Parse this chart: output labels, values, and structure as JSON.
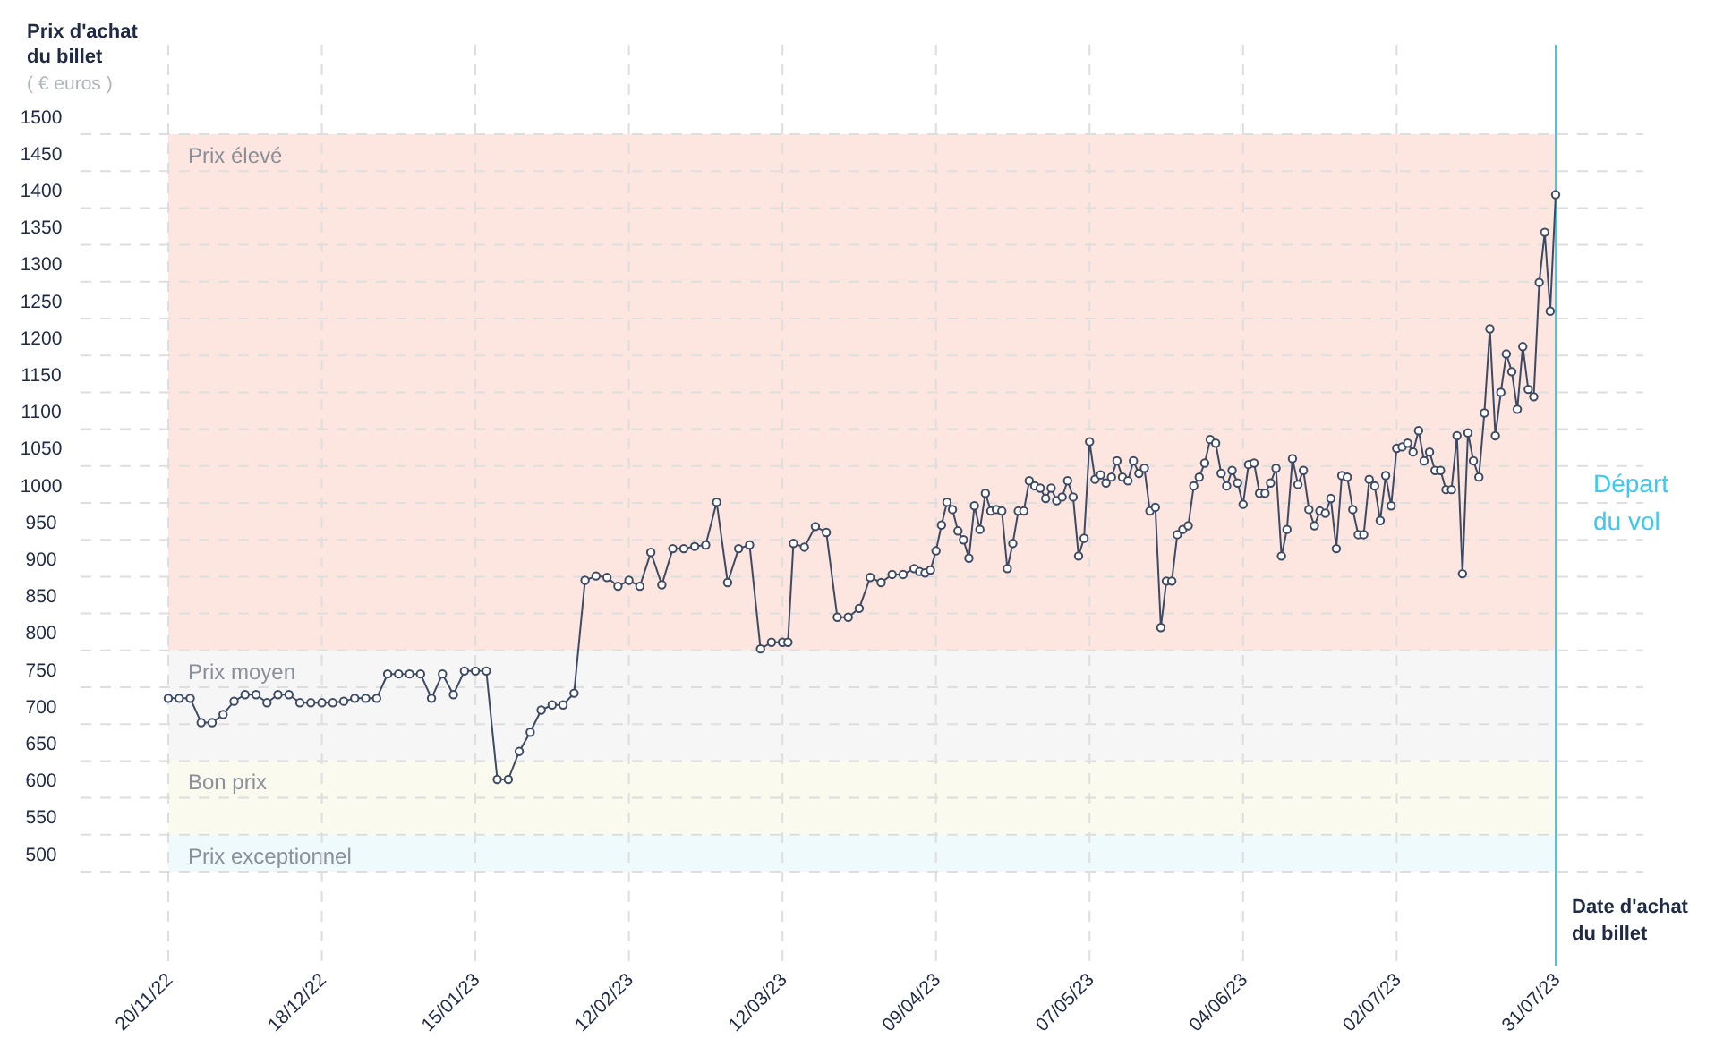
{
  "chart_data": {
    "type": "line",
    "ylabel": "Prix d'achat du billet",
    "xlabel": "Date d'achat du billet",
    "annotations": [
      "( € euros )"
    ],
    "xlim": [
      "2022-11-20",
      "2023-07-31"
    ],
    "xticks": [
      {
        "value": "2022-11-20",
        "label": "20/11/22"
      },
      {
        "value": "2022-12-18",
        "label": "18/12/22"
      },
      {
        "value": "2023-01-15",
        "label": "15/01/23"
      },
      {
        "value": "2023-02-12",
        "label": "12/02/23"
      },
      {
        "value": "2023-03-12",
        "label": "12/03/23"
      },
      {
        "value": "2023-04-09",
        "label": "09/04/23"
      },
      {
        "value": "2023-05-07",
        "label": "07/05/23"
      },
      {
        "value": "2023-06-04",
        "label": "04/06/23"
      },
      {
        "value": "2023-07-02",
        "label": "02/07/23"
      },
      {
        "value": "2023-07-31",
        "label": "31/07/23"
      }
    ],
    "ylim": [
      500,
      1500
    ],
    "yticks": [
      500,
      550,
      600,
      650,
      700,
      750,
      800,
      850,
      900,
      950,
      1000,
      1050,
      1100,
      1150,
      1200,
      1250,
      1300,
      1350,
      1400,
      1450,
      1500
    ],
    "grid": true,
    "marker": "circle",
    "bands": [
      {
        "axis": "y",
        "from": 800,
        "to": 1500,
        "label": "Prix élevé",
        "color": "#fde6df"
      },
      {
        "axis": "y",
        "from": 650,
        "to": 800,
        "label": "Prix moyen",
        "color": "#f6f6f6"
      },
      {
        "axis": "y",
        "from": 550,
        "to": 650,
        "label": "Bon prix",
        "color": "#fafaee"
      },
      {
        "axis": "y",
        "from": 500,
        "to": 550,
        "label": "Prix exceptionnel",
        "color": "#eefafc"
      }
    ],
    "ref_lines": [
      {
        "axis": "x",
        "value": "2023-07-31",
        "label": "Départ du vol",
        "color": "#3cc8f0"
      }
    ],
    "series": [
      {
        "color": "#3d4a63",
        "x": [
          "2022-11-20",
          "2022-11-22",
          "2022-11-24",
          "2022-11-26",
          "2022-11-28",
          "2022-11-30",
          "2022-12-02",
          "2022-12-04",
          "2022-12-06",
          "2022-12-08",
          "2022-12-10",
          "2022-12-12",
          "2022-12-14",
          "2022-12-16",
          "2022-12-18",
          "2022-12-20",
          "2022-12-22",
          "2022-12-24",
          "2022-12-26",
          "2022-12-28",
          "2022-12-30",
          "2023-01-01",
          "2023-01-03",
          "2023-01-05",
          "2023-01-07",
          "2023-01-09",
          "2023-01-11",
          "2023-01-13",
          "2023-01-15",
          "2023-01-17",
          "2023-01-19",
          "2023-01-21",
          "2023-01-23",
          "2023-01-25",
          "2023-01-27",
          "2023-01-29",
          "2023-01-31",
          "2023-02-02",
          "2023-02-04",
          "2023-02-06",
          "2023-02-08",
          "2023-02-10",
          "2023-02-12",
          "2023-02-14",
          "2023-02-16",
          "2023-02-18",
          "2023-02-20",
          "2023-02-22",
          "2023-02-24",
          "2023-02-26",
          "2023-02-28",
          "2023-03-02",
          "2023-03-04",
          "2023-03-06",
          "2023-03-08",
          "2023-03-10",
          "2023-03-12",
          "2023-03-13",
          "2023-03-14",
          "2023-03-16",
          "2023-03-18",
          "2023-03-20",
          "2023-03-22",
          "2023-03-24",
          "2023-03-26",
          "2023-03-28",
          "2023-03-30",
          "2023-04-01",
          "2023-04-03",
          "2023-04-05",
          "2023-04-06",
          "2023-04-07",
          "2023-04-08",
          "2023-04-09",
          "2023-04-10",
          "2023-04-11",
          "2023-04-12",
          "2023-04-13",
          "2023-04-14",
          "2023-04-15",
          "2023-04-16",
          "2023-04-17",
          "2023-04-18",
          "2023-04-19",
          "2023-04-20",
          "2023-04-21",
          "2023-04-22",
          "2023-04-23",
          "2023-04-24",
          "2023-04-25",
          "2023-04-26",
          "2023-04-27",
          "2023-04-28",
          "2023-04-29",
          "2023-04-30",
          "2023-05-01",
          "2023-05-02",
          "2023-05-03",
          "2023-05-04",
          "2023-05-05",
          "2023-05-06",
          "2023-05-07",
          "2023-05-08",
          "2023-05-09",
          "2023-05-10",
          "2023-05-11",
          "2023-05-12",
          "2023-05-13",
          "2023-05-14",
          "2023-05-15",
          "2023-05-16",
          "2023-05-17",
          "2023-05-18",
          "2023-05-19",
          "2023-05-20",
          "2023-05-21",
          "2023-05-22",
          "2023-05-23",
          "2023-05-24",
          "2023-05-25",
          "2023-05-26",
          "2023-05-27",
          "2023-05-28",
          "2023-05-29",
          "2023-05-30",
          "2023-05-31",
          "2023-06-01",
          "2023-06-02",
          "2023-06-03",
          "2023-06-04",
          "2023-06-05",
          "2023-06-06",
          "2023-06-07",
          "2023-06-08",
          "2023-06-09",
          "2023-06-10",
          "2023-06-11",
          "2023-06-12",
          "2023-06-13",
          "2023-06-14",
          "2023-06-15",
          "2023-06-16",
          "2023-06-17",
          "2023-06-18",
          "2023-06-19",
          "2023-06-20",
          "2023-06-21",
          "2023-06-22",
          "2023-06-23",
          "2023-06-24",
          "2023-06-25",
          "2023-06-26",
          "2023-06-27",
          "2023-06-28",
          "2023-06-29",
          "2023-06-30",
          "2023-07-01",
          "2023-07-02",
          "2023-07-03",
          "2023-07-04",
          "2023-07-05",
          "2023-07-06",
          "2023-07-07",
          "2023-07-08",
          "2023-07-09",
          "2023-07-10",
          "2023-07-11",
          "2023-07-12",
          "2023-07-13",
          "2023-07-14",
          "2023-07-15",
          "2023-07-16",
          "2023-07-17",
          "2023-07-18",
          "2023-07-19",
          "2023-07-20",
          "2023-07-21",
          "2023-07-22",
          "2023-07-23",
          "2023-07-24",
          "2023-07-25",
          "2023-07-26",
          "2023-07-27",
          "2023-07-28",
          "2023-07-29",
          "2023-07-30",
          "2023-07-31"
        ],
        "values": [
          735,
          735,
          735,
          702,
          702,
          713,
          731,
          740,
          740,
          729,
          740,
          740,
          729,
          729,
          729,
          729,
          731,
          735,
          735,
          735,
          768,
          768,
          768,
          768,
          735,
          768,
          740,
          772,
          772,
          772,
          625,
          625,
          663,
          689,
          719,
          726,
          726,
          742,
          895,
          901,
          899,
          887,
          895,
          887,
          933,
          889,
          938,
          938,
          941,
          943,
          1001,
          892,
          938,
          943,
          802,
          811,
          811,
          811,
          945,
          940,
          968,
          960,
          845,
          845,
          857,
          899,
          892,
          903,
          903,
          911,
          907,
          905,
          909,
          935,
          970,
          1001,
          991,
          962,
          950,
          925,
          996,
          964,
          1013,
          989,
          991,
          989,
          911,
          945,
          989,
          989,
          1030,
          1023,
          1020,
          1006,
          1020,
          1003,
          1008,
          1030,
          1008,
          928,
          952,
          1083,
          1032,
          1038,
          1027,
          1035,
          1057,
          1035,
          1030,
          1057,
          1040,
          1047,
          989,
          994,
          831,
          894,
          894,
          957,
          964,
          969,
          1023,
          1035,
          1054,
          1086,
          1081,
          1040,
          1023,
          1044,
          1027,
          998,
          1052,
          1054,
          1013,
          1013,
          1027,
          1047,
          928,
          964,
          1060,
          1025,
          1044,
          991,
          969,
          989,
          986,
          1006,
          938,
          1037,
          1035,
          991,
          957,
          957,
          1032,
          1023,
          976,
          1037,
          996,
          1074,
          1076,
          1081,
          1069,
          1098,
          1057,
          1069,
          1044,
          1044,
          1018,
          1018,
          1091,
          904,
          1095,
          1057,
          1035,
          1122,
          1236,
          1091,
          1150,
          1202,
          1178,
          1127,
          1212,
          1154,
          1144,
          1299,
          1367,
          1260,
          1418
        ]
      }
    ]
  }
}
